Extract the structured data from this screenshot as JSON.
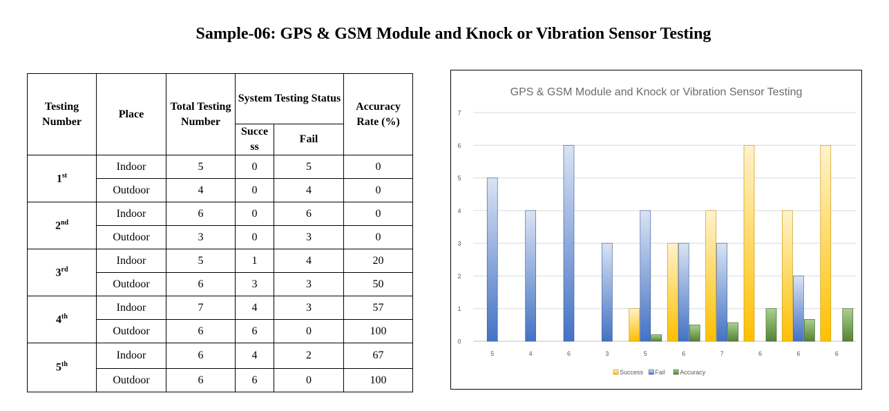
{
  "page": {
    "title": "Sample-06: GPS & GSM Module and Knock or Vibration Sensor Testing"
  },
  "table": {
    "headers": {
      "testing_number": "Testing Number",
      "place": "Place",
      "total": "Total Testing Number",
      "status": "System Testing Status",
      "success": "Succe ss",
      "fail": "Fail",
      "accuracy": "Accuracy Rate (%)"
    },
    "groups": [
      {
        "num": "1",
        "suffix": "st",
        "rows": [
          {
            "place": "Indoor",
            "total": "5",
            "success": "0",
            "fail": "5",
            "accuracy": "0"
          },
          {
            "place": "Outdoor",
            "total": "4",
            "success": "0",
            "fail": "4",
            "accuracy": "0"
          }
        ]
      },
      {
        "num": "2",
        "suffix": "nd",
        "rows": [
          {
            "place": "Indoor",
            "total": "6",
            "success": "0",
            "fail": "6",
            "accuracy": "0"
          },
          {
            "place": "Outdoor",
            "total": "3",
            "success": "0",
            "fail": "3",
            "accuracy": "0"
          }
        ]
      },
      {
        "num": "3",
        "suffix": "rd",
        "rows": [
          {
            "place": "Indoor",
            "total": "5",
            "success": "1",
            "fail": "4",
            "accuracy": "20"
          },
          {
            "place": "Outdoor",
            "total": "6",
            "success": "3",
            "fail": "3",
            "accuracy": "50"
          }
        ]
      },
      {
        "num": "4",
        "suffix": "th",
        "rows": [
          {
            "place": "Indoor",
            "total": "7",
            "success": "4",
            "fail": "3",
            "accuracy": "57"
          },
          {
            "place": "Outdoor",
            "total": "6",
            "success": "6",
            "fail": "0",
            "accuracy": "100"
          }
        ]
      },
      {
        "num": "5",
        "suffix": "th",
        "rows": [
          {
            "place": "Indoor",
            "total": "6",
            "success": "4",
            "fail": "2",
            "accuracy": "67"
          },
          {
            "place": "Outdoor",
            "total": "6",
            "success": "6",
            "fail": "0",
            "accuracy": "100"
          }
        ]
      }
    ]
  },
  "chart_data": {
    "type": "bar",
    "title": "GPS & GSM Module and Knock or Vibration Sensor Testing",
    "categories": [
      "5",
      "4",
      "6",
      "3",
      "5",
      "6",
      "7",
      "6",
      "6",
      "6"
    ],
    "series": [
      {
        "name": "Success",
        "values": [
          0,
          0,
          0,
          0,
          1,
          3,
          4,
          6,
          4,
          6
        ],
        "color": "#ffc000"
      },
      {
        "name": "Fail",
        "values": [
          5,
          4,
          6,
          3,
          4,
          3,
          3,
          0,
          2,
          0
        ],
        "color": "#4472c4"
      },
      {
        "name": "Accuracy",
        "values": [
          0,
          0,
          0,
          0,
          0.2,
          0.5,
          0.57,
          1,
          0.67,
          1
        ],
        "color": "#70ad47"
      }
    ],
    "yticks": [
      "0",
      "1",
      "2",
      "3",
      "4",
      "5",
      "6",
      "7"
    ],
    "ylim": [
      0,
      7
    ],
    "grid": true,
    "legend": "bottom"
  }
}
